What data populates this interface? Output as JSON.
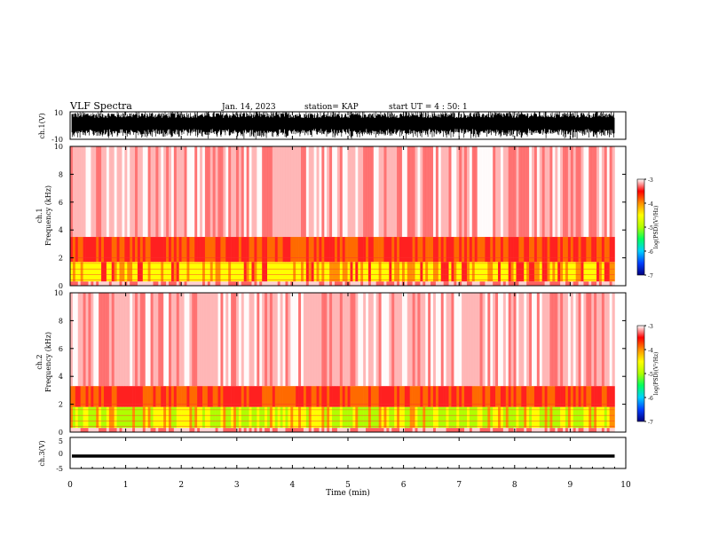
{
  "header": {
    "title": "VLF Spectra",
    "date": "Jan. 14, 2023",
    "station": "station= KAP",
    "start": "start  UT =   4 : 50: 1"
  },
  "chart_data": [
    {
      "type": "line",
      "name": "waveform-ch1",
      "ylabel": "ch.1(V)",
      "ylim": [
        -10,
        10
      ],
      "yticks": [
        "10",
        "-10"
      ],
      "xlim": [
        0,
        10
      ],
      "amplitude": 10,
      "data_end_min": 9.8
    },
    {
      "type": "heatmap",
      "name": "spectrogram-ch1",
      "ylabel": "ch.1\nFrequency (kHz)",
      "ylim": [
        0,
        10
      ],
      "yticks": [
        0,
        2,
        4,
        6,
        8,
        10
      ],
      "xlim": [
        0,
        10
      ],
      "colorbar": {
        "label": "log(PSD)(V²/Hz)",
        "range": [
          -7,
          -3
        ],
        "ticks": [
          "-3",
          "-4",
          "-5",
          "-6",
          "-7"
        ]
      },
      "bands_kHz": {
        "high_power": [
          0.3,
          1.7
        ],
        "mid_power": [
          1.7,
          3.5
        ],
        "background": [
          3.5,
          10
        ]
      }
    },
    {
      "type": "heatmap",
      "name": "spectrogram-ch2",
      "ylabel": "ch.2\nFrequency (kHz)",
      "ylim": [
        0,
        10
      ],
      "yticks": [
        0,
        2,
        4,
        6,
        8,
        10
      ],
      "xlim": [
        0,
        10
      ],
      "colorbar": {
        "label": "log(PSD)(V²/Hz)",
        "range": [
          -7,
          -3
        ],
        "ticks": [
          "-3",
          "-4",
          "-5",
          "-6",
          "-7"
        ]
      },
      "bands_kHz": {
        "high_power": [
          0.3,
          1.8
        ],
        "mid_power": [
          1.8,
          3.3
        ],
        "background": [
          3.3,
          10
        ]
      }
    },
    {
      "type": "line",
      "name": "waveform-ch3",
      "ylabel": "ch.3(V)",
      "ylim": [
        -5,
        5
      ],
      "yticks": [
        "5",
        "0",
        "-5"
      ],
      "xlim": [
        0,
        10
      ],
      "level": -1,
      "band": 0.5,
      "data_end_min": 9.8,
      "xticks": [
        "0",
        "1",
        "2",
        "3",
        "4",
        "5",
        "6",
        "7",
        "8",
        "9",
        "10"
      ],
      "xlabel": "Time (min)"
    }
  ],
  "colors": {
    "colormap": [
      "#00007f",
      "#0040ff",
      "#00d0ff",
      "#00ff60",
      "#b0ff00",
      "#ffff00",
      "#ff9000",
      "#ff0000",
      "#ffffff"
    ]
  }
}
